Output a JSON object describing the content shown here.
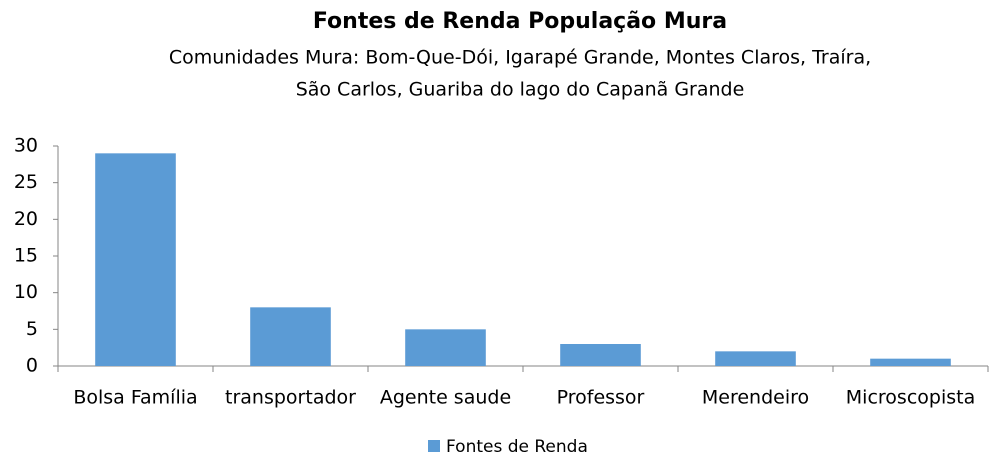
{
  "chart_data": {
    "type": "bar",
    "title": "Fontes de Renda População Mura",
    "subtitle": [
      "Comunidades Mura: Bom-Que-Dói, Igarapé Grande, Montes Claros, Traíra,",
      "São Carlos, Guariba  do lago do Capanã Grande"
    ],
    "categories": [
      "Bolsa Família",
      "transportador",
      "Agente saude",
      "Professor",
      "Merendeiro",
      "Microscopista"
    ],
    "series": [
      {
        "name": "Fontes de Renda",
        "color": "#5b9bd5",
        "values": [
          29,
          8,
          5,
          3,
          2,
          1
        ]
      }
    ],
    "ylim": [
      0,
      30
    ],
    "yticks": [
      0,
      5,
      10,
      15,
      20,
      25,
      30
    ],
    "grid": false,
    "legend": "bottom"
  }
}
